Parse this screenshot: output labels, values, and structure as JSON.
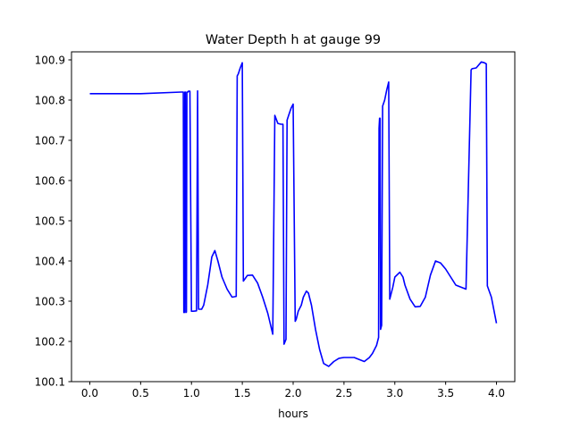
{
  "chart_data": {
    "type": "line",
    "title": "Water Depth h at gauge 99",
    "xlabel": "hours",
    "ylabel": "",
    "xlim": [
      -0.18,
      4.18
    ],
    "ylim": [
      100.1,
      100.92
    ],
    "xticks": [
      0.0,
      0.5,
      1.0,
      1.5,
      2.0,
      2.5,
      3.0,
      3.5,
      4.0
    ],
    "xtick_labels": [
      "0.0",
      "0.5",
      "1.0",
      "1.5",
      "2.0",
      "2.5",
      "3.0",
      "3.5",
      "4.0"
    ],
    "yticks": [
      100.1,
      100.2,
      100.3,
      100.4,
      100.5,
      100.6,
      100.7,
      100.8,
      100.9
    ],
    "ytick_labels": [
      "100.1",
      "100.2",
      "100.3",
      "100.4",
      "100.5",
      "100.6",
      "100.7",
      "100.8",
      "100.9"
    ],
    "grid": false,
    "line_color": "#0000ff",
    "series": [
      {
        "x": [
          0.0,
          0.5,
          0.9,
          0.92,
          0.925,
          0.93,
          0.935,
          0.94,
          0.945,
          0.95,
          0.955,
          0.96,
          0.965,
          0.97,
          0.985,
          1.0,
          1.02,
          1.05,
          1.06,
          1.07,
          1.1,
          1.12,
          1.16,
          1.2,
          1.23,
          1.26,
          1.3,
          1.35,
          1.4,
          1.44,
          1.45,
          1.46,
          1.48,
          1.5,
          1.51,
          1.55,
          1.6,
          1.65,
          1.7,
          1.75,
          1.8,
          1.82,
          1.83,
          1.85,
          1.88,
          1.9,
          1.91,
          1.93,
          1.94,
          1.96,
          1.98,
          2.0,
          2.02,
          2.03,
          2.05,
          2.08,
          2.1,
          2.13,
          2.15,
          2.18,
          2.22,
          2.26,
          2.3,
          2.35,
          2.4,
          2.45,
          2.5,
          2.55,
          2.6,
          2.65,
          2.7,
          2.75,
          2.78,
          2.82,
          2.84,
          2.845,
          2.85,
          2.855,
          2.86,
          2.87,
          2.88,
          2.9,
          2.92,
          2.94,
          2.95,
          2.98,
          3.0,
          3.05,
          3.08,
          3.1,
          3.15,
          3.2,
          3.25,
          3.3,
          3.35,
          3.4,
          3.45,
          3.5,
          3.55,
          3.6,
          3.65,
          3.7,
          3.75,
          3.76,
          3.8,
          3.85,
          3.88,
          3.9,
          3.91,
          3.95,
          4.0
        ],
        "y": [
          100.816,
          100.816,
          100.82,
          100.82,
          100.272,
          100.272,
          100.82,
          100.82,
          100.272,
          100.273,
          100.82,
          100.82,
          100.82,
          100.822,
          100.822,
          100.275,
          100.275,
          100.276,
          100.823,
          100.28,
          100.28,
          100.29,
          100.34,
          100.41,
          100.426,
          100.4,
          100.36,
          100.33,
          100.31,
          100.312,
          100.86,
          100.865,
          100.88,
          100.893,
          100.35,
          100.364,
          100.365,
          100.345,
          100.31,
          100.27,
          100.218,
          100.762,
          100.755,
          100.742,
          100.74,
          100.74,
          100.193,
          100.205,
          100.75,
          100.765,
          100.78,
          100.79,
          100.25,
          100.255,
          100.275,
          100.29,
          100.31,
          100.325,
          100.32,
          100.29,
          100.23,
          100.18,
          100.145,
          100.138,
          100.15,
          100.158,
          100.16,
          100.16,
          100.16,
          100.155,
          100.15,
          100.16,
          100.17,
          100.19,
          100.21,
          100.73,
          100.755,
          100.755,
          100.23,
          100.24,
          100.785,
          100.8,
          100.825,
          100.845,
          100.305,
          100.335,
          100.36,
          100.372,
          100.36,
          100.34,
          100.305,
          100.286,
          100.287,
          100.31,
          100.365,
          100.4,
          100.395,
          100.38,
          100.36,
          100.34,
          100.335,
          100.33,
          100.875,
          100.878,
          100.88,
          100.895,
          100.893,
          100.89,
          100.338,
          100.31,
          100.245
        ]
      }
    ]
  }
}
